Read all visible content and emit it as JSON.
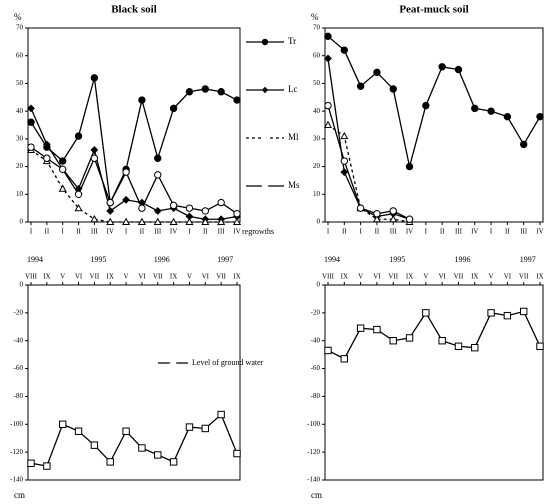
{
  "chart_data": [
    {
      "type": "line",
      "title": "Black soil",
      "ylabel": "%",
      "ylim": [
        0,
        70
      ],
      "yticks": [
        0,
        10,
        20,
        30,
        40,
        50,
        60,
        70
      ],
      "categories": [
        "I",
        "II",
        "I",
        "II",
        "III",
        "IV",
        "I",
        "II",
        "III",
        "IV",
        "I",
        "II",
        "III",
        "IV"
      ],
      "xlabel": "regrowths",
      "years": [
        "1994",
        "1995",
        "1996",
        "1997"
      ],
      "legend": "right",
      "series": [
        {
          "name": "Tr",
          "color": "#000",
          "marker": "circle-filled",
          "values": [
            36,
            27,
            22,
            31,
            52,
            7,
            19,
            44,
            23,
            41,
            47,
            48,
            47,
            44
          ]
        },
        {
          "name": "Lc",
          "color": "#000",
          "marker": "diamond-filled",
          "values": [
            41,
            28,
            19,
            12,
            26,
            4,
            8,
            7,
            4,
            5,
            2,
            1,
            1,
            2
          ]
        },
        {
          "name": "Ml",
          "color": "#000",
          "marker": "triangle",
          "dashed": true,
          "values": [
            26,
            22,
            12,
            5,
            1,
            0,
            0,
            0,
            0,
            0,
            0,
            0,
            0,
            0
          ]
        },
        {
          "name": "Ms",
          "color": "#000",
          "marker": "circle",
          "values": [
            27,
            23,
            19,
            10,
            23,
            7,
            18,
            5,
            17,
            6,
            5,
            4,
            7,
            3
          ]
        }
      ]
    },
    {
      "type": "line",
      "title": "Peat-muck soil",
      "ylabel": "%",
      "ylim": [
        0,
        70
      ],
      "yticks": [
        0,
        10,
        20,
        30,
        40,
        50,
        60,
        70
      ],
      "categories": [
        "I",
        "II",
        "I",
        "II",
        "III",
        "IV",
        "I",
        "II",
        "III",
        "IV",
        "I",
        "II",
        "III",
        "IV"
      ],
      "years": [
        "1994",
        "1995",
        "1996",
        "1997"
      ],
      "series": [
        {
          "name": "Tr",
          "color": "#000",
          "marker": "circle-filled",
          "values": [
            67,
            62,
            49,
            54,
            48,
            20,
            42,
            56,
            55,
            41,
            40,
            38,
            28,
            38
          ]
        },
        {
          "name": "Lc",
          "color": "#000",
          "marker": "diamond-filled",
          "values": [
            59,
            18,
            5,
            2,
            3,
            1,
            null,
            null,
            null,
            null,
            null,
            null,
            null,
            null
          ]
        },
        {
          "name": "Ml",
          "color": "#000",
          "marker": "triangle",
          "dashed": true,
          "values": [
            35,
            31,
            5,
            1,
            1,
            0,
            null,
            null,
            null,
            null,
            null,
            null,
            null,
            null
          ]
        },
        {
          "name": "Ms",
          "color": "#000",
          "marker": "circle",
          "values": [
            42,
            22,
            5,
            3,
            4,
            1,
            null,
            null,
            null,
            null,
            null,
            null,
            null,
            null
          ]
        }
      ]
    },
    {
      "type": "line",
      "ylabel": "cm",
      "ylim": [
        -140,
        0
      ],
      "yticks": [
        0,
        -20,
        -40,
        -60,
        -80,
        -100,
        -120,
        -140
      ],
      "categories": [
        "VIII",
        "IX",
        "V",
        "VI",
        "VII",
        "IX",
        "V",
        "VI",
        "VII",
        "IX",
        "V",
        "VI",
        "VII",
        "IX"
      ],
      "legend": "center",
      "series": [
        {
          "name": "Level of ground water",
          "color": "#000",
          "marker": "square",
          "values": [
            -128,
            -130,
            -100,
            -105,
            -115,
            -127,
            -105,
            -117,
            -122,
            -127,
            -102,
            -103,
            -93,
            -121
          ]
        }
      ]
    },
    {
      "type": "line",
      "ylabel": "cm",
      "ylim": [
        -140,
        0
      ],
      "yticks": [
        0,
        -20,
        -40,
        -60,
        -80,
        -100,
        -120,
        -140
      ],
      "categories": [
        "VIII",
        "IX",
        "V",
        "VI",
        "VII",
        "IX",
        "V",
        "VI",
        "VII",
        "IX",
        "V",
        "VI",
        "VII",
        "IX"
      ],
      "series": [
        {
          "name": "Level of ground water",
          "color": "#000",
          "marker": "square",
          "values": [
            -47,
            -53,
            -31,
            -32,
            -40,
            -38,
            -20,
            -40,
            -44,
            -45,
            -20,
            -22,
            -19,
            -44
          ]
        }
      ]
    }
  ]
}
